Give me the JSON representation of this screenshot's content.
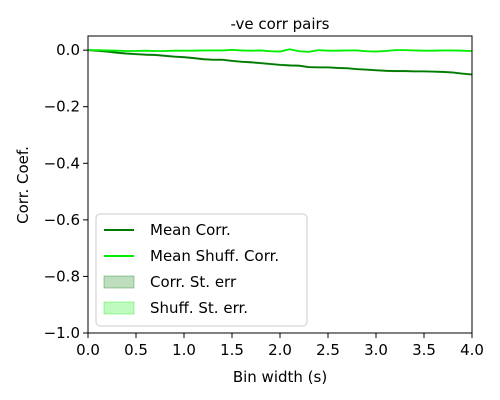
{
  "chart_data": {
    "type": "line",
    "title": "-ve corr pairs",
    "xlabel": "Bin width (s)",
    "ylabel": "Corr. Coef.",
    "xlim": [
      0.0,
      4.0
    ],
    "ylim": [
      -1.0,
      0.05
    ],
    "xticks": [
      0.0,
      0.5,
      1.0,
      1.5,
      2.0,
      2.5,
      3.0,
      3.5,
      4.0
    ],
    "xtick_labels": [
      "0.0",
      "0.5",
      "1.0",
      "1.5",
      "2.0",
      "2.5",
      "3.0",
      "3.5",
      "4.0"
    ],
    "yticks": [
      0.0,
      -0.2,
      -0.4,
      -0.6,
      -0.8,
      -1.0
    ],
    "ytick_labels": [
      "0.0",
      "−0.2",
      "−0.4",
      "−0.6",
      "−0.8",
      "−1.0"
    ],
    "grid": false,
    "legend_position": "lower-left",
    "x": [
      0.0,
      0.1,
      0.2,
      0.3,
      0.4,
      0.5,
      0.6,
      0.7,
      0.8,
      0.9,
      1.0,
      1.1,
      1.2,
      1.3,
      1.4,
      1.5,
      1.6,
      1.7,
      1.8,
      1.9,
      2.0,
      2.1,
      2.2,
      2.3,
      2.4,
      2.5,
      2.6,
      2.7,
      2.8,
      2.9,
      3.0,
      3.1,
      3.2,
      3.3,
      3.4,
      3.5,
      3.6,
      3.7,
      3.8,
      3.9,
      4.0
    ],
    "series": [
      {
        "name": "Mean Corr.",
        "color": "#007a00",
        "values": [
          0.0,
          -0.002,
          -0.005,
          -0.009,
          -0.012,
          -0.014,
          -0.016,
          -0.017,
          -0.02,
          -0.023,
          -0.025,
          -0.028,
          -0.032,
          -0.034,
          -0.034,
          -0.038,
          -0.041,
          -0.043,
          -0.046,
          -0.049,
          -0.052,
          -0.054,
          -0.055,
          -0.06,
          -0.061,
          -0.061,
          -0.063,
          -0.064,
          -0.067,
          -0.069,
          -0.071,
          -0.073,
          -0.074,
          -0.074,
          -0.075,
          -0.075,
          -0.076,
          -0.077,
          -0.079,
          -0.083,
          -0.086
        ],
        "stderr": 0.004
      },
      {
        "name": "Mean Shuff. Corr.",
        "color": "#00ee00",
        "values": [
          0.0,
          0.0,
          -0.001,
          -0.002,
          -0.003,
          -0.003,
          -0.002,
          -0.003,
          -0.003,
          -0.002,
          -0.002,
          -0.002,
          -0.001,
          -0.001,
          -0.001,
          0.001,
          -0.001,
          -0.002,
          -0.001,
          -0.004,
          -0.005,
          0.003,
          -0.004,
          -0.006,
          0.0,
          -0.002,
          -0.002,
          -0.001,
          -0.001,
          -0.004,
          -0.005,
          -0.003,
          0.0,
          0.0,
          -0.001,
          -0.002,
          -0.002,
          -0.001,
          -0.001,
          -0.002,
          -0.003
        ],
        "stderr": 0.003
      }
    ],
    "legend": [
      {
        "label": "Mean Corr.",
        "kind": "line",
        "color": "#007a00"
      },
      {
        "label": "Mean Shuff. Corr.",
        "kind": "line",
        "color": "#00ee00"
      },
      {
        "label": "Corr. St. err",
        "kind": "patch",
        "color": "#007a00"
      },
      {
        "label": "Shuff. St. err.",
        "kind": "patch",
        "color": "#00ee00"
      }
    ]
  }
}
